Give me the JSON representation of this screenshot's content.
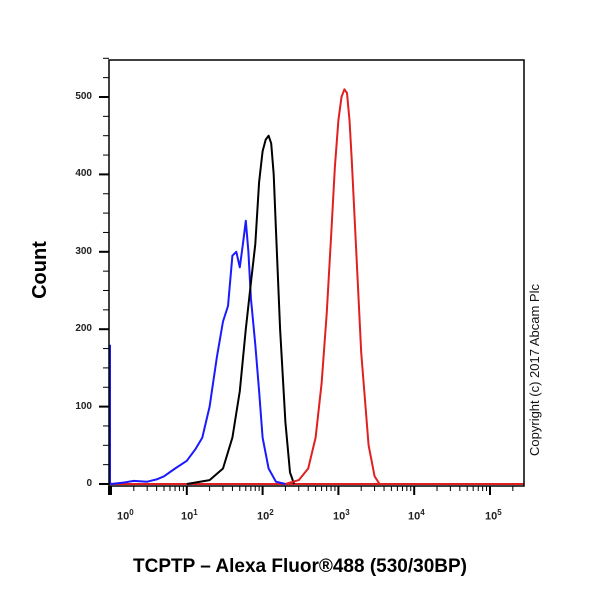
{
  "chart_data": {
    "type": "line",
    "title": "",
    "xlabel": "TCPTP – Alexa Fluor®488 (530/30BP)",
    "ylabel": "Count",
    "x_scale": "log",
    "xlim": [
      0.6,
      250000
    ],
    "ylim": [
      0,
      550
    ],
    "y_ticks": [
      0,
      100,
      200,
      300,
      400,
      500
    ],
    "x_ticks": [
      "10^0",
      "10^1",
      "10^2",
      "10^3",
      "10^4",
      "10^5"
    ],
    "grid": false,
    "legend": null,
    "annotation": "Copyright (c) 2017 Abcam Plc",
    "series": [
      {
        "name": "blue",
        "color": "#1a1aff",
        "x": [
          0.62,
          0.65,
          0.7,
          0.8,
          1,
          1.5,
          2,
          3,
          4,
          5,
          7,
          10,
          13,
          16,
          20,
          25,
          30,
          35,
          40,
          45,
          50,
          55,
          60,
          65,
          70,
          80,
          90,
          100,
          120,
          150,
          200
        ],
        "y": [
          180,
          60,
          5,
          2,
          0,
          2,
          4,
          3,
          6,
          10,
          20,
          30,
          45,
          60,
          100,
          165,
          210,
          230,
          295,
          300,
          280,
          310,
          340,
          300,
          240,
          180,
          120,
          60,
          20,
          3,
          0
        ]
      },
      {
        "name": "black",
        "color": "#000000",
        "x": [
          10,
          20,
          30,
          40,
          50,
          60,
          70,
          80,
          90,
          100,
          110,
          120,
          130,
          140,
          150,
          170,
          200,
          230,
          260
        ],
        "y": [
          0,
          5,
          20,
          60,
          120,
          200,
          260,
          310,
          390,
          430,
          445,
          450,
          440,
          400,
          330,
          200,
          80,
          15,
          0
        ]
      },
      {
        "name": "red",
        "color": "#e02020",
        "x": [
          200,
          300,
          400,
          500,
          600,
          700,
          800,
          900,
          1000,
          1100,
          1200,
          1300,
          1400,
          1500,
          1700,
          2000,
          2500,
          3000,
          3500
        ],
        "y": [
          0,
          5,
          20,
          60,
          130,
          220,
          320,
          410,
          470,
          500,
          510,
          505,
          470,
          420,
          310,
          170,
          50,
          10,
          0
        ]
      }
    ]
  },
  "labels": {
    "ylabel": "Count",
    "xlabel": "TCPTP – Alexa Fluor®488 (530/30BP)",
    "copyright": "Copyright (c) 2017 Abcam Plc",
    "yticks": [
      "500",
      "400",
      "300",
      "200",
      "100",
      "0"
    ],
    "xtick_base": "10",
    "xtick_exps": [
      "0",
      "1",
      "2",
      "3",
      "4",
      "5"
    ]
  }
}
